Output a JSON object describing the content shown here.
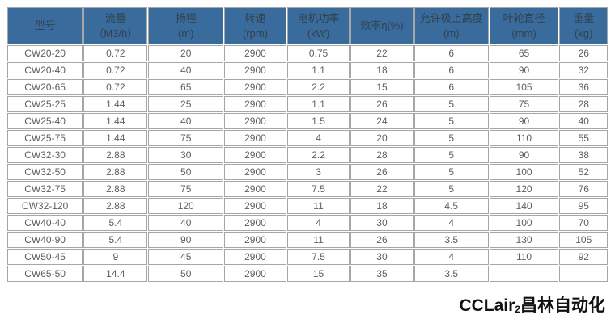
{
  "page": {
    "background": "#ffffff"
  },
  "watermark": {
    "latin": "CCLair",
    "sub": "2",
    "cjk": "昌林自动化",
    "color": "#111111"
  },
  "table": {
    "header_bg": "#3a6b9d",
    "header_text_color": "#31424a",
    "border_color": "#a6a6a6",
    "body_text_color": "#5e5e5e",
    "columns": [
      {
        "line1": "型号",
        "line2": ""
      },
      {
        "line1": "流量（M3/h）",
        "line2": ""
      },
      {
        "line1": "扬程",
        "line2": "(m)"
      },
      {
        "line1": "转速",
        "line2": "(rpm)"
      },
      {
        "line1": "电机功率(kW)",
        "line2": ""
      },
      {
        "line1": "效率η(%)",
        "line2": ""
      },
      {
        "line1": "允许吸上高度(m)",
        "line2": ""
      },
      {
        "line1": "叶轮直径(mm)",
        "line2": ""
      },
      {
        "line1": "重量",
        "line2": "(kg)"
      }
    ],
    "col_widths_pct": [
      12.7,
      10.8,
      12.6,
      10.5,
      10.5,
      10.6,
      12.5,
      11.7,
      8.1
    ],
    "rows": [
      [
        "CW20-20",
        "0.72",
        "20",
        "2900",
        "0.75",
        "22",
        "6",
        "65",
        "26"
      ],
      [
        "CW20-40",
        "0.72",
        "40",
        "2900",
        "1.1",
        "18",
        "6",
        "90",
        "32"
      ],
      [
        "CW20-65",
        "0.72",
        "65",
        "2900",
        "2.2",
        "15",
        "6",
        "105",
        "36"
      ],
      [
        "CW25-25",
        "1.44",
        "25",
        "2900",
        "1.1",
        "26",
        "5",
        "75",
        "28"
      ],
      [
        "CW25-40",
        "1.44",
        "40",
        "2900",
        "1.5",
        "24",
        "5",
        "90",
        "40"
      ],
      [
        "CW25-75",
        "1.44",
        "75",
        "2900",
        "4",
        "20",
        "5",
        "110",
        "55"
      ],
      [
        "CW32-30",
        "2.88",
        "30",
        "2900",
        "2.2",
        "28",
        "5",
        "90",
        "38"
      ],
      [
        "CW32-50",
        "2.88",
        "50",
        "2900",
        "3",
        "26",
        "5",
        "100",
        "52"
      ],
      [
        "CW32-75",
        "2.88",
        "75",
        "2900",
        "7.5",
        "22",
        "5",
        "120",
        "76"
      ],
      [
        "CW32-120",
        "2.88",
        "120",
        "2900",
        "11",
        "18",
        "4.5",
        "140",
        "95"
      ],
      [
        "CW40-40",
        "5.4",
        "40",
        "2900",
        "4",
        "30",
        "4",
        "100",
        "70"
      ],
      [
        "CW40-90",
        "5.4",
        "90",
        "2900",
        "11",
        "26",
        "3.5",
        "130",
        "105"
      ],
      [
        "CW50-45",
        "9",
        "45",
        "2900",
        "7.5",
        "30",
        "4",
        "110",
        "92"
      ],
      [
        "CW65-50",
        "14.4",
        "50",
        "2900",
        "15",
        "35",
        "3.5",
        "",
        ""
      ]
    ]
  }
}
